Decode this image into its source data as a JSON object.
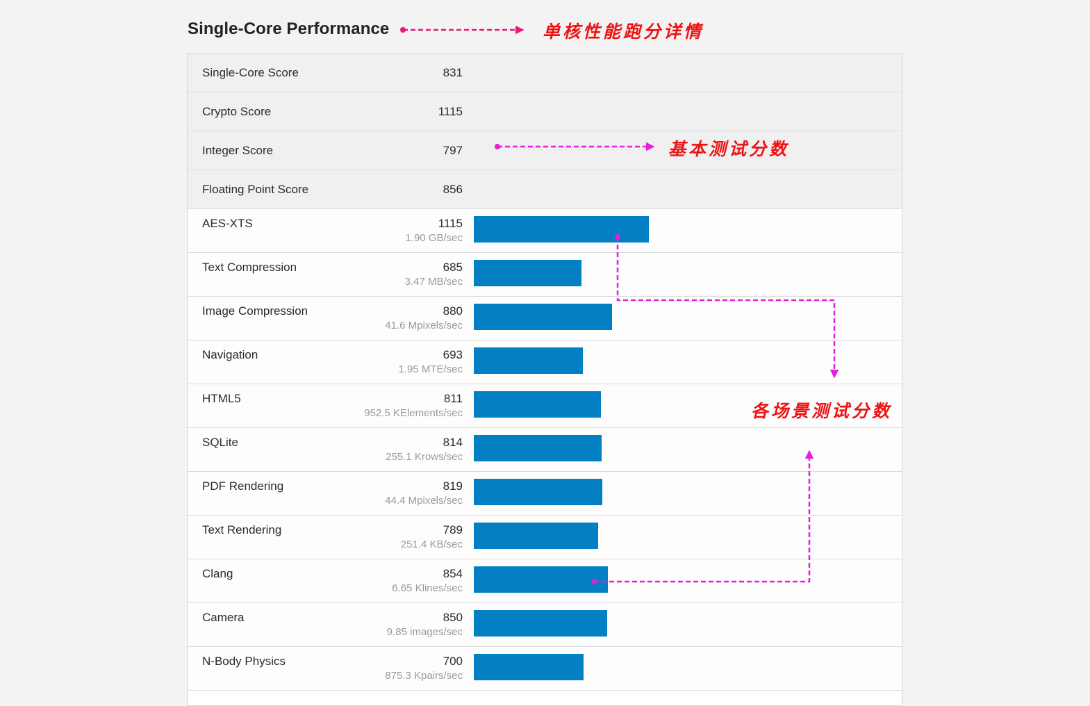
{
  "title": "Single-Core Performance",
  "summary": [
    {
      "label": "Single-Core Score",
      "score": "831"
    },
    {
      "label": "Crypto Score",
      "score": "1115"
    },
    {
      "label": "Integer Score",
      "score": "797"
    },
    {
      "label": "Floating Point Score",
      "score": "856"
    }
  ],
  "benchmarks": [
    {
      "name": "AES-XTS",
      "score": 1115,
      "rate": "1.90 GB/sec"
    },
    {
      "name": "Text Compression",
      "score": 685,
      "rate": "3.47 MB/sec"
    },
    {
      "name": "Image Compression",
      "score": 880,
      "rate": "41.6 Mpixels/sec"
    },
    {
      "name": "Navigation",
      "score": 693,
      "rate": "1.95 MTE/sec"
    },
    {
      "name": "HTML5",
      "score": 811,
      "rate": "952.5 KElements/sec"
    },
    {
      "name": "SQLite",
      "score": 814,
      "rate": "255.1 Krows/sec"
    },
    {
      "name": "PDF Rendering",
      "score": 819,
      "rate": "44.4 Mpixels/sec"
    },
    {
      "name": "Text Rendering",
      "score": 789,
      "rate": "251.4 KB/sec"
    },
    {
      "name": "Clang",
      "score": 854,
      "rate": "6.65 Klines/sec"
    },
    {
      "name": "Camera",
      "score": 850,
      "rate": "9.85 images/sec"
    },
    {
      "name": "N-Body Physics",
      "score": 700,
      "rate": "875.3 Kpairs/sec"
    }
  ],
  "bar_scale_max_score": 4420,
  "annotations": {
    "title_note": "单核性能跑分详情",
    "basic_note": "基本测试分数",
    "scenario_note": "各场景测试分数"
  },
  "colors": {
    "bar": "#0280c3",
    "arrow_title": "#e8197a",
    "arrow_other": "#e81cdc",
    "annotation_text": "#ee1313"
  }
}
